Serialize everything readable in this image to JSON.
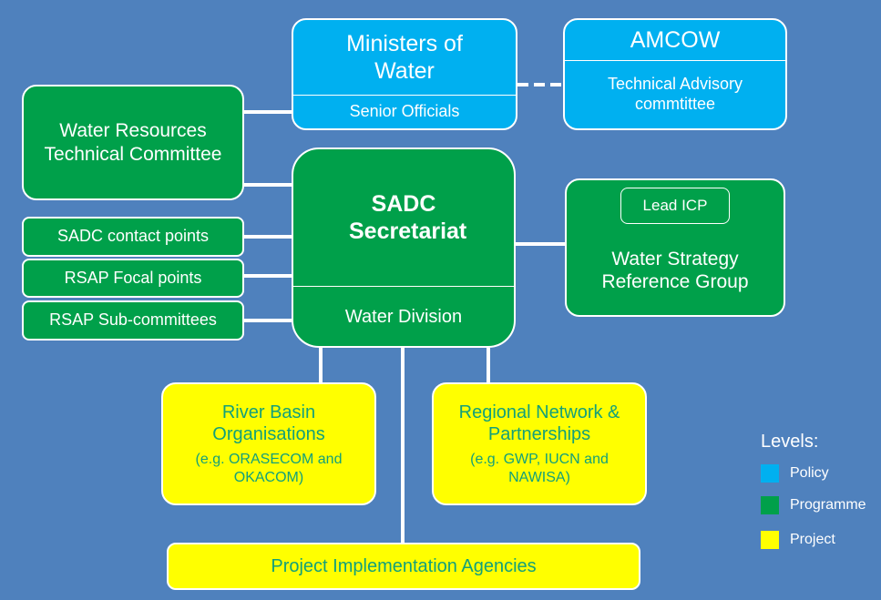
{
  "ministers": {
    "title": "Ministers of Water",
    "subtitle": "Senior Officials"
  },
  "amcow": {
    "title": "AMCOW",
    "subtitle": "Technical Advisory commtittee"
  },
  "wrtc": {
    "title": "Water Resources Technical Committee"
  },
  "secretariat": {
    "title": "SADC Secretariat",
    "subtitle": "Water Division"
  },
  "side_groups": [
    "SADC contact points",
    "RSAP Focal points",
    "RSAP Sub-committees"
  ],
  "wsrg": {
    "inner": "Lead ICP",
    "title": "Water Strategy Reference Group"
  },
  "rbo": {
    "title": "River Basin Organisations",
    "subtitle": "(e.g. ORASECOM and OKACOM)"
  },
  "rnp": {
    "title": "Regional Network & Partnerships",
    "subtitle": "(e.g. GWP, IUCN and NAWISA)"
  },
  "pia": {
    "title": "Project Implementation Agencies"
  },
  "legend": {
    "title": "Levels:",
    "items": [
      "Policy",
      "Programme",
      "Project"
    ]
  }
}
